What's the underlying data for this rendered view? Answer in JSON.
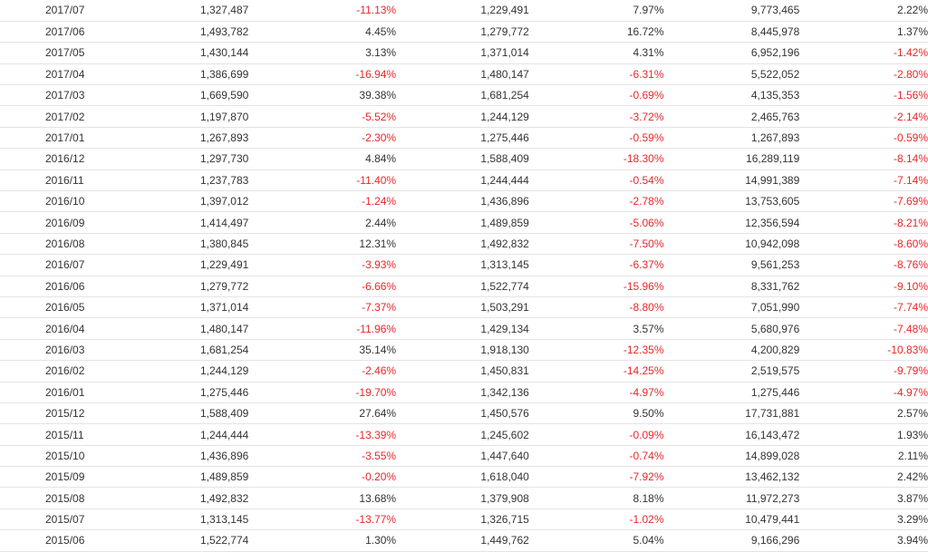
{
  "rows": [
    [
      "2017/07",
      "1,327,487",
      "-11.13%",
      "1,229,491",
      "7.97%",
      "9,773,465",
      "2.22%"
    ],
    [
      "2017/06",
      "1,493,782",
      "4.45%",
      "1,279,772",
      "16.72%",
      "8,445,978",
      "1.37%"
    ],
    [
      "2017/05",
      "1,430,144",
      "3.13%",
      "1,371,014",
      "4.31%",
      "6,952,196",
      "-1.42%"
    ],
    [
      "2017/04",
      "1,386,699",
      "-16.94%",
      "1,480,147",
      "-6.31%",
      "5,522,052",
      "-2.80%"
    ],
    [
      "2017/03",
      "1,669,590",
      "39.38%",
      "1,681,254",
      "-0.69%",
      "4,135,353",
      "-1.56%"
    ],
    [
      "2017/02",
      "1,197,870",
      "-5.52%",
      "1,244,129",
      "-3.72%",
      "2,465,763",
      "-2.14%"
    ],
    [
      "2017/01",
      "1,267,893",
      "-2.30%",
      "1,275,446",
      "-0.59%",
      "1,267,893",
      "-0.59%"
    ],
    [
      "2016/12",
      "1,297,730",
      "4.84%",
      "1,588,409",
      "-18.30%",
      "16,289,119",
      "-8.14%"
    ],
    [
      "2016/11",
      "1,237,783",
      "-11.40%",
      "1,244,444",
      "-0.54%",
      "14,991,389",
      "-7.14%"
    ],
    [
      "2016/10",
      "1,397,012",
      "-1.24%",
      "1,436,896",
      "-2.78%",
      "13,753,605",
      "-7.69%"
    ],
    [
      "2016/09",
      "1,414,497",
      "2.44%",
      "1,489,859",
      "-5.06%",
      "12,356,594",
      "-8.21%"
    ],
    [
      "2016/08",
      "1,380,845",
      "12.31%",
      "1,492,832",
      "-7.50%",
      "10,942,098",
      "-8.60%"
    ],
    [
      "2016/07",
      "1,229,491",
      "-3.93%",
      "1,313,145",
      "-6.37%",
      "9,561,253",
      "-8.76%"
    ],
    [
      "2016/06",
      "1,279,772",
      "-6.66%",
      "1,522,774",
      "-15.96%",
      "8,331,762",
      "-9.10%"
    ],
    [
      "2016/05",
      "1,371,014",
      "-7.37%",
      "1,503,291",
      "-8.80%",
      "7,051,990",
      "-7.74%"
    ],
    [
      "2016/04",
      "1,480,147",
      "-11.96%",
      "1,429,134",
      "3.57%",
      "5,680,976",
      "-7.48%"
    ],
    [
      "2016/03",
      "1,681,254",
      "35.14%",
      "1,918,130",
      "-12.35%",
      "4,200,829",
      "-10.83%"
    ],
    [
      "2016/02",
      "1,244,129",
      "-2.46%",
      "1,450,831",
      "-14.25%",
      "2,519,575",
      "-9.79%"
    ],
    [
      "2016/01",
      "1,275,446",
      "-19.70%",
      "1,342,136",
      "-4.97%",
      "1,275,446",
      "-4.97%"
    ],
    [
      "2015/12",
      "1,588,409",
      "27.64%",
      "1,450,576",
      "9.50%",
      "17,731,881",
      "2.57%"
    ],
    [
      "2015/11",
      "1,244,444",
      "-13.39%",
      "1,245,602",
      "-0.09%",
      "16,143,472",
      "1.93%"
    ],
    [
      "2015/10",
      "1,436,896",
      "-3.55%",
      "1,447,640",
      "-0.74%",
      "14,899,028",
      "2.11%"
    ],
    [
      "2015/09",
      "1,489,859",
      "-0.20%",
      "1,618,040",
      "-7.92%",
      "13,462,132",
      "2.42%"
    ],
    [
      "2015/08",
      "1,492,832",
      "13.68%",
      "1,379,908",
      "8.18%",
      "11,972,273",
      "3.87%"
    ],
    [
      "2015/07",
      "1,313,145",
      "-13.77%",
      "1,326,715",
      "-1.02%",
      "10,479,441",
      "3.29%"
    ],
    [
      "2015/06",
      "1,522,774",
      "1.30%",
      "1,449,762",
      "5.04%",
      "9,166,296",
      "3.94%"
    ]
  ],
  "colors": {
    "negative": "#e8272b",
    "text": "#333333",
    "row_border": "#e4e4e4"
  }
}
